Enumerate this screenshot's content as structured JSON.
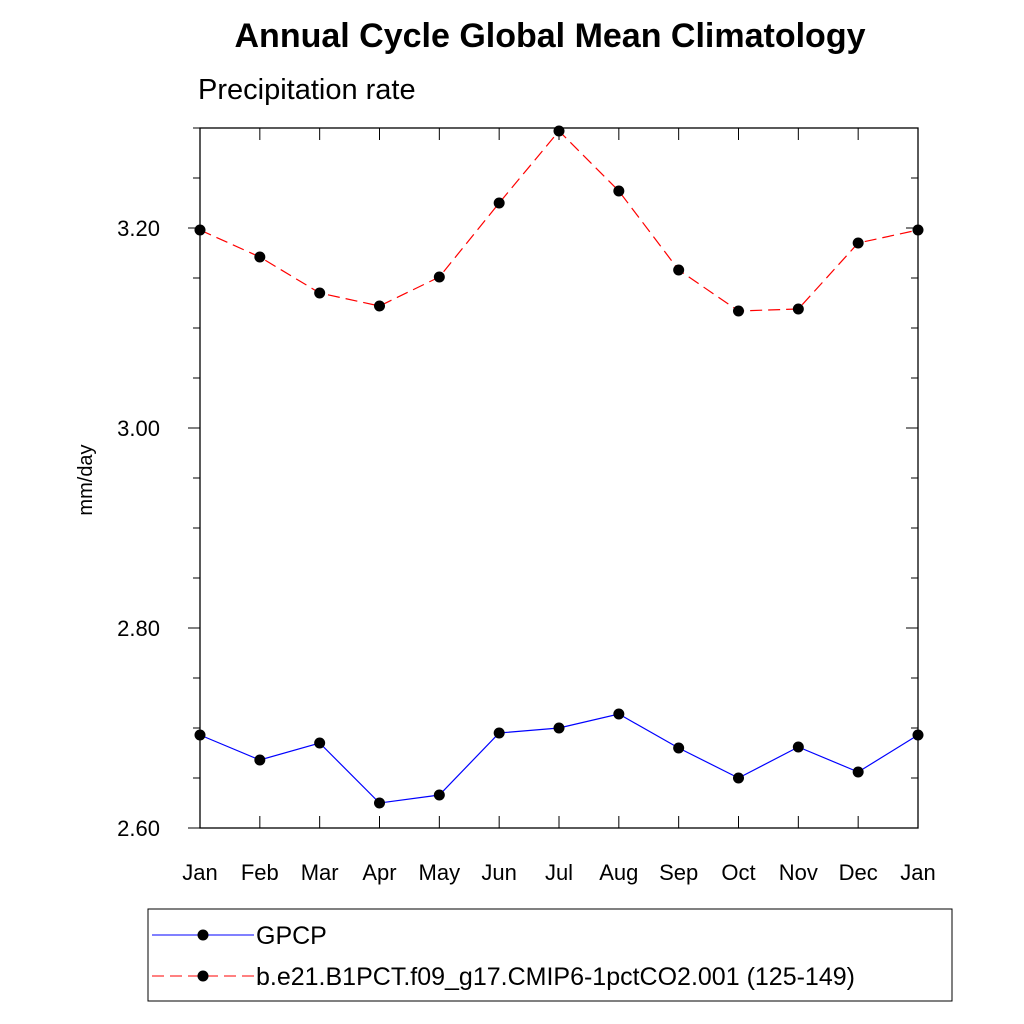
{
  "chart_data": {
    "type": "line",
    "title": "Annual Cycle Global Mean Climatology",
    "subtitle": "Precipitation rate",
    "xlabel": "",
    "ylabel": "mm/day",
    "categories": [
      "Jan",
      "Feb",
      "Mar",
      "Apr",
      "May",
      "Jun",
      "Jul",
      "Aug",
      "Sep",
      "Oct",
      "Nov",
      "Dec",
      "Jan"
    ],
    "ylim": [
      2.6,
      3.3
    ],
    "yticks": [
      2.6,
      2.8,
      3.0,
      3.2
    ],
    "ytick_labels": [
      "2.60",
      "2.80",
      "3.00",
      "3.20"
    ],
    "grid": false,
    "legend_position": "bottom",
    "series": [
      {
        "name": "GPCP",
        "color": "#0000ff",
        "dash": "solid",
        "values": [
          2.693,
          2.668,
          2.685,
          2.625,
          2.633,
          2.695,
          2.7,
          2.714,
          2.68,
          2.65,
          2.681,
          2.656,
          2.693
        ]
      },
      {
        "name": "b.e21.B1PCT.f09_g17.CMIP6-1pctCO2.001 (125-149)",
        "color": "#ff0000",
        "dash": "dashed",
        "values": [
          3.198,
          3.171,
          3.135,
          3.122,
          3.151,
          3.225,
          3.297,
          3.237,
          3.158,
          3.117,
          3.119,
          3.185,
          3.198
        ]
      }
    ]
  }
}
